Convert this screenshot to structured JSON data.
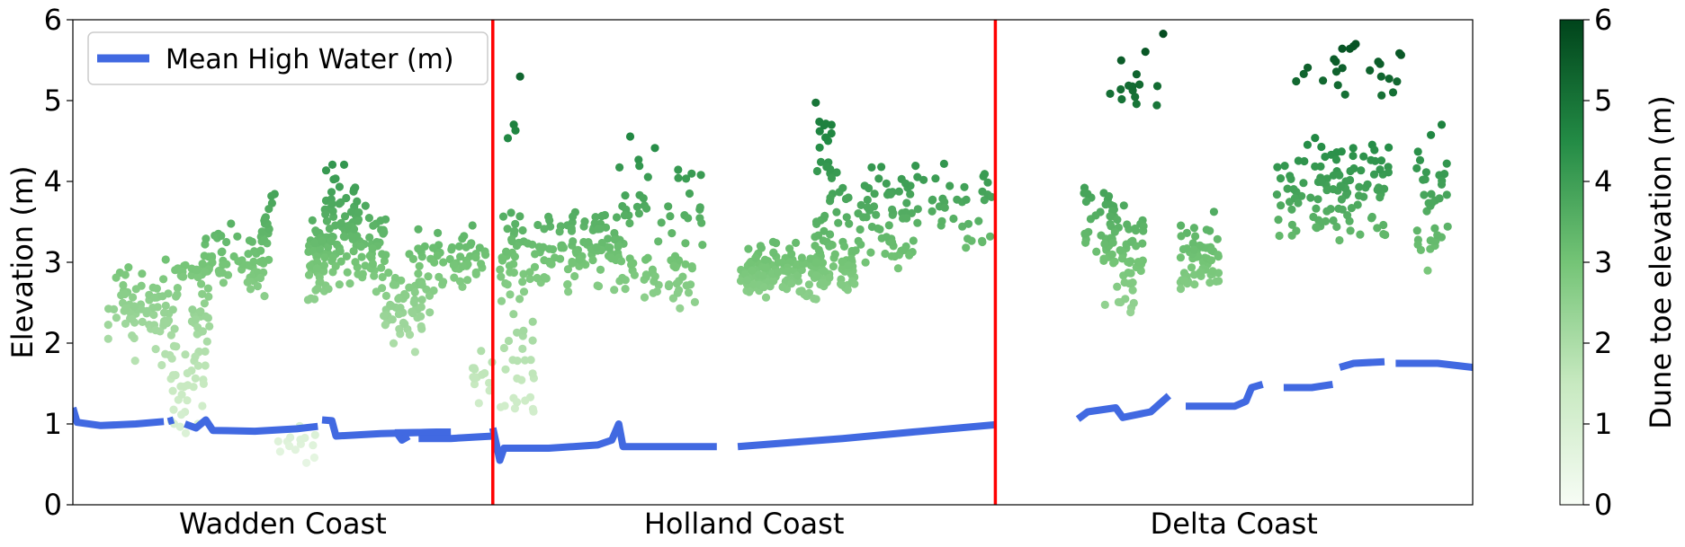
{
  "chart_data": {
    "type": "scatter",
    "ylabel": "Elevation (m)",
    "ylim": [
      0,
      6
    ],
    "yticks": [
      "0",
      "1",
      "2",
      "3",
      "4",
      "5",
      "6"
    ],
    "regions": [
      "Wadden Coast",
      "Holland Coast",
      "Delta Coast"
    ],
    "region_boundaries_fraction": [
      0.3,
      0.659
    ],
    "x_domain": [
      0,
      1
    ],
    "legend": {
      "label": "Mean High Water (m)",
      "position": "top-left"
    },
    "colorbar": {
      "label": "Dune toe elevation (m)",
      "range": [
        0,
        6
      ],
      "ticks": [
        "0",
        "1",
        "2",
        "3",
        "4",
        "5",
        "6"
      ]
    },
    "colors": {
      "mhw": "#4169e1",
      "boundary": "#ff0000",
      "cmap_low": "#f7fcf5",
      "cmap_mid": "#74c476",
      "cmap_high": "#00441b"
    },
    "mhw_segments": [
      [
        [
          0.0,
          1.2
        ],
        [
          0.003,
          1.02
        ],
        [
          0.02,
          0.98
        ],
        [
          0.045,
          1.0
        ],
        [
          0.065,
          1.03
        ]
      ],
      [
        [
          0.068,
          1.03
        ],
        [
          0.072,
          1.05
        ]
      ],
      [
        [
          0.08,
          1.0
        ],
        [
          0.088,
          0.95
        ],
        [
          0.095,
          1.05
        ],
        [
          0.1,
          0.92
        ],
        [
          0.13,
          0.91
        ],
        [
          0.16,
          0.94
        ],
        [
          0.175,
          0.97
        ]
      ],
      [
        [
          0.178,
          1.05
        ],
        [
          0.185,
          1.04
        ],
        [
          0.188,
          0.85
        ],
        [
          0.22,
          0.88
        ],
        [
          0.26,
          0.9
        ],
        [
          0.27,
          0.9
        ]
      ],
      [
        [
          0.23,
          0.89
        ],
        [
          0.27,
          0.9
        ]
      ],
      [
        [
          0.231,
          0.9
        ],
        [
          0.235,
          0.8
        ],
        [
          0.24,
          0.85
        ]
      ],
      [
        [
          0.247,
          0.82
        ],
        [
          0.27,
          0.82
        ],
        [
          0.29,
          0.84
        ],
        [
          0.3,
          0.85
        ]
      ],
      [
        [
          0.3,
          0.95
        ],
        [
          0.305,
          0.55
        ],
        [
          0.308,
          0.7
        ],
        [
          0.34,
          0.7
        ],
        [
          0.375,
          0.74
        ],
        [
          0.385,
          0.8
        ],
        [
          0.39,
          1.0
        ],
        [
          0.393,
          0.72
        ],
        [
          0.46,
          0.72
        ]
      ],
      [
        [
          0.475,
          0.72
        ],
        [
          0.55,
          0.82
        ],
        [
          0.6,
          0.9
        ],
        [
          0.659,
          0.99
        ]
      ],
      [
        [
          0.718,
          1.06
        ],
        [
          0.725,
          1.15
        ],
        [
          0.745,
          1.2
        ],
        [
          0.75,
          1.08
        ],
        [
          0.77,
          1.15
        ],
        [
          0.783,
          1.35
        ]
      ],
      [
        [
          0.795,
          1.22
        ],
        [
          0.83,
          1.22
        ],
        [
          0.838,
          1.28
        ],
        [
          0.842,
          1.45
        ],
        [
          0.85,
          1.49
        ]
      ],
      [
        [
          0.865,
          1.45
        ],
        [
          0.885,
          1.45
        ],
        [
          0.9,
          1.49
        ]
      ],
      [
        [
          0.905,
          1.7
        ],
        [
          0.915,
          1.75
        ],
        [
          0.937,
          1.77
        ]
      ],
      [
        [
          0.945,
          1.75
        ],
        [
          0.975,
          1.75
        ],
        [
          1.0,
          1.7
        ]
      ]
    ],
    "scatter_clusters": [
      {
        "x": [
          0.025,
          0.075
        ],
        "y": [
          1.6,
          3.2
        ],
        "n": 80
      },
      {
        "x": [
          0.072,
          0.098
        ],
        "y": [
          2.8,
          3.0
        ],
        "n": 25
      },
      {
        "x": [
          0.07,
          0.095
        ],
        "y": [
          0.8,
          2.2
        ],
        "n": 35
      },
      {
        "x": [
          0.085,
          0.098
        ],
        "y": [
          1.9,
          2.6
        ],
        "n": 20
      },
      {
        "x": [
          0.088,
          0.14
        ],
        "y": [
          2.5,
          3.5
        ],
        "n": 70
      },
      {
        "x": [
          0.135,
          0.145
        ],
        "y": [
          3.2,
          3.95
        ],
        "n": 12
      },
      {
        "x": [
          0.145,
          0.175
        ],
        "y": [
          0.45,
          1.2
        ],
        "n": 15
      },
      {
        "x": [
          0.168,
          0.185
        ],
        "y": [
          2.5,
          3.4
        ],
        "n": 30
      },
      {
        "x": [
          0.17,
          0.225
        ],
        "y": [
          2.6,
          3.8
        ],
        "n": 110
      },
      {
        "x": [
          0.18,
          0.205
        ],
        "y": [
          3.2,
          4.4
        ],
        "n": 30
      },
      {
        "x": [
          0.22,
          0.255
        ],
        "y": [
          1.8,
          3.0
        ],
        "n": 55
      },
      {
        "x": [
          0.24,
          0.295
        ],
        "y": [
          2.6,
          3.5
        ],
        "n": 60
      },
      {
        "x": [
          0.285,
          0.3
        ],
        "y": [
          1.2,
          2.0
        ],
        "n": 14
      },
      {
        "x": [
          0.305,
          0.33
        ],
        "y": [
          0.8,
          2.8
        ],
        "n": 30
      },
      {
        "x": [
          0.305,
          0.4
        ],
        "y": [
          2.6,
          3.7
        ],
        "n": 140
      },
      {
        "x": [
          0.31,
          0.32
        ],
        "y": [
          4.1,
          5.4
        ],
        "n": 4
      },
      {
        "x": [
          0.39,
          0.445
        ],
        "y": [
          2.4,
          3.2
        ],
        "n": 40
      },
      {
        "x": [
          0.39,
          0.45
        ],
        "y": [
          2.6,
          4.6
        ],
        "n": 40
      },
      {
        "x": [
          0.475,
          0.5
        ],
        "y": [
          2.5,
          3.1
        ],
        "n": 35
      },
      {
        "x": [
          0.48,
          0.56
        ],
        "y": [
          2.5,
          3.3
        ],
        "n": 130
      },
      {
        "x": [
          0.53,
          0.6
        ],
        "y": [
          2.8,
          4.3
        ],
        "n": 80
      },
      {
        "x": [
          0.53,
          0.55
        ],
        "y": [
          3.9,
          5.2
        ],
        "n": 15
      },
      {
        "x": [
          0.59,
          0.659
        ],
        "y": [
          3.0,
          4.3
        ],
        "n": 50
      },
      {
        "x": [
          0.72,
          0.745
        ],
        "y": [
          3.0,
          4.1
        ],
        "n": 30
      },
      {
        "x": [
          0.735,
          0.765
        ],
        "y": [
          2.3,
          3.8
        ],
        "n": 60
      },
      {
        "x": [
          0.74,
          0.78
        ],
        "y": [
          4.3,
          6.0
        ],
        "n": 15
      },
      {
        "x": [
          0.79,
          0.82
        ],
        "y": [
          2.5,
          3.7
        ],
        "n": 60
      },
      {
        "x": [
          0.86,
          0.905
        ],
        "y": [
          3.2,
          4.6
        ],
        "n": 55
      },
      {
        "x": [
          0.87,
          0.9
        ],
        "y": [
          5.2,
          5.5
        ],
        "n": 4
      },
      {
        "x": [
          0.9,
          0.94
        ],
        "y": [
          3.2,
          4.6
        ],
        "n": 55
      },
      {
        "x": [
          0.9,
          0.95
        ],
        "y": [
          4.8,
          6.0
        ],
        "n": 20
      },
      {
        "x": [
          0.96,
          0.985
        ],
        "y": [
          2.7,
          4.9
        ],
        "n": 35
      }
    ]
  }
}
